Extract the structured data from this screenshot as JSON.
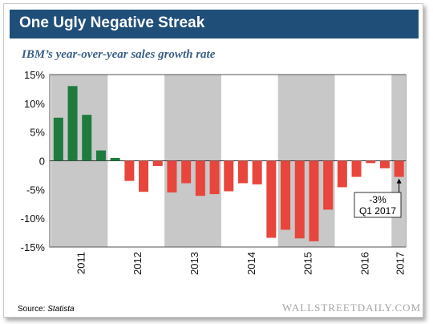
{
  "header": {
    "title": "One Ugly Negative Streak"
  },
  "subtitle": "IBM’s year-over-year sales growth rate",
  "source": {
    "label": "Source:",
    "name": "Statista"
  },
  "brand": "WALLSTREETDAILY.COM",
  "colors": {
    "positive": "#1e7b3d",
    "negative": "#e8453c",
    "shade": "#c8c8c8",
    "header": "#1f4e79"
  },
  "chart_data": {
    "type": "bar",
    "title": "IBM’s year-over-year sales growth rate",
    "xlabel": "",
    "ylabel": "",
    "ylim": [
      -15,
      15
    ],
    "yticks": [
      "15%",
      "10%",
      "5%",
      "0",
      "-5%",
      "-10%",
      "-15%"
    ],
    "ytick_values": [
      15,
      10,
      5,
      0,
      -5,
      -10,
      -15
    ],
    "years": [
      "2011",
      "2012",
      "2013",
      "2014",
      "2015",
      "2016",
      "2017"
    ],
    "shaded_years": [
      "2011",
      "2013",
      "2015",
      "2017"
    ],
    "quarters": [
      "Q1 2011",
      "Q2 2011",
      "Q3 2011",
      "Q4 2011",
      "Q1 2012",
      "Q2 2012",
      "Q3 2012",
      "Q4 2012",
      "Q1 2013",
      "Q2 2013",
      "Q3 2013",
      "Q4 2013",
      "Q1 2014",
      "Q2 2014",
      "Q3 2014",
      "Q4 2014",
      "Q1 2015",
      "Q2 2015",
      "Q3 2015",
      "Q4 2015",
      "Q1 2016",
      "Q2 2016",
      "Q3 2016",
      "Q4 2016",
      "Q1 2017"
    ],
    "values": [
      7.5,
      13,
      8,
      1.8,
      0.5,
      -3.5,
      -5.4,
      -0.9,
      -5.5,
      -3.9,
      -6.1,
      -5.8,
      -5.3,
      -3.9,
      -4.1,
      -13.4,
      -12,
      -13.5,
      -14,
      -8.5,
      -4.6,
      -2.8,
      -0.4,
      -1.3,
      -2.8
    ],
    "annotation": {
      "value_label": "-3%",
      "period_label": "Q1 2017"
    }
  }
}
